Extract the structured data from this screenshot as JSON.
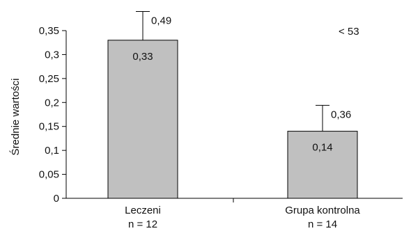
{
  "chart_data": {
    "type": "bar",
    "categories": [
      "Leczeni",
      "Grupa kontrolna"
    ],
    "category_sublabels": [
      "n = 12",
      "n = 14"
    ],
    "values": [
      0.33,
      0.14
    ],
    "value_labels": [
      "0,33",
      "0,14"
    ],
    "error_upper": [
      0.39,
      0.194
    ],
    "error_labels": [
      "0,49",
      "0,36"
    ],
    "ylabel": "Średnie wartości",
    "ylim": [
      0,
      0.35
    ],
    "yticks": [
      0,
      0.05,
      0.1,
      0.15,
      0.2,
      0.25,
      0.3,
      0.35
    ],
    "ytick_labels": [
      "0",
      "0,05",
      "0,1",
      "0,15",
      "0,2",
      "0,25",
      "0,3",
      "0,35"
    ],
    "annotation": "< 53",
    "grid": false,
    "bar_color": "#c0c0c0",
    "bar_edge_color": "#000000"
  }
}
